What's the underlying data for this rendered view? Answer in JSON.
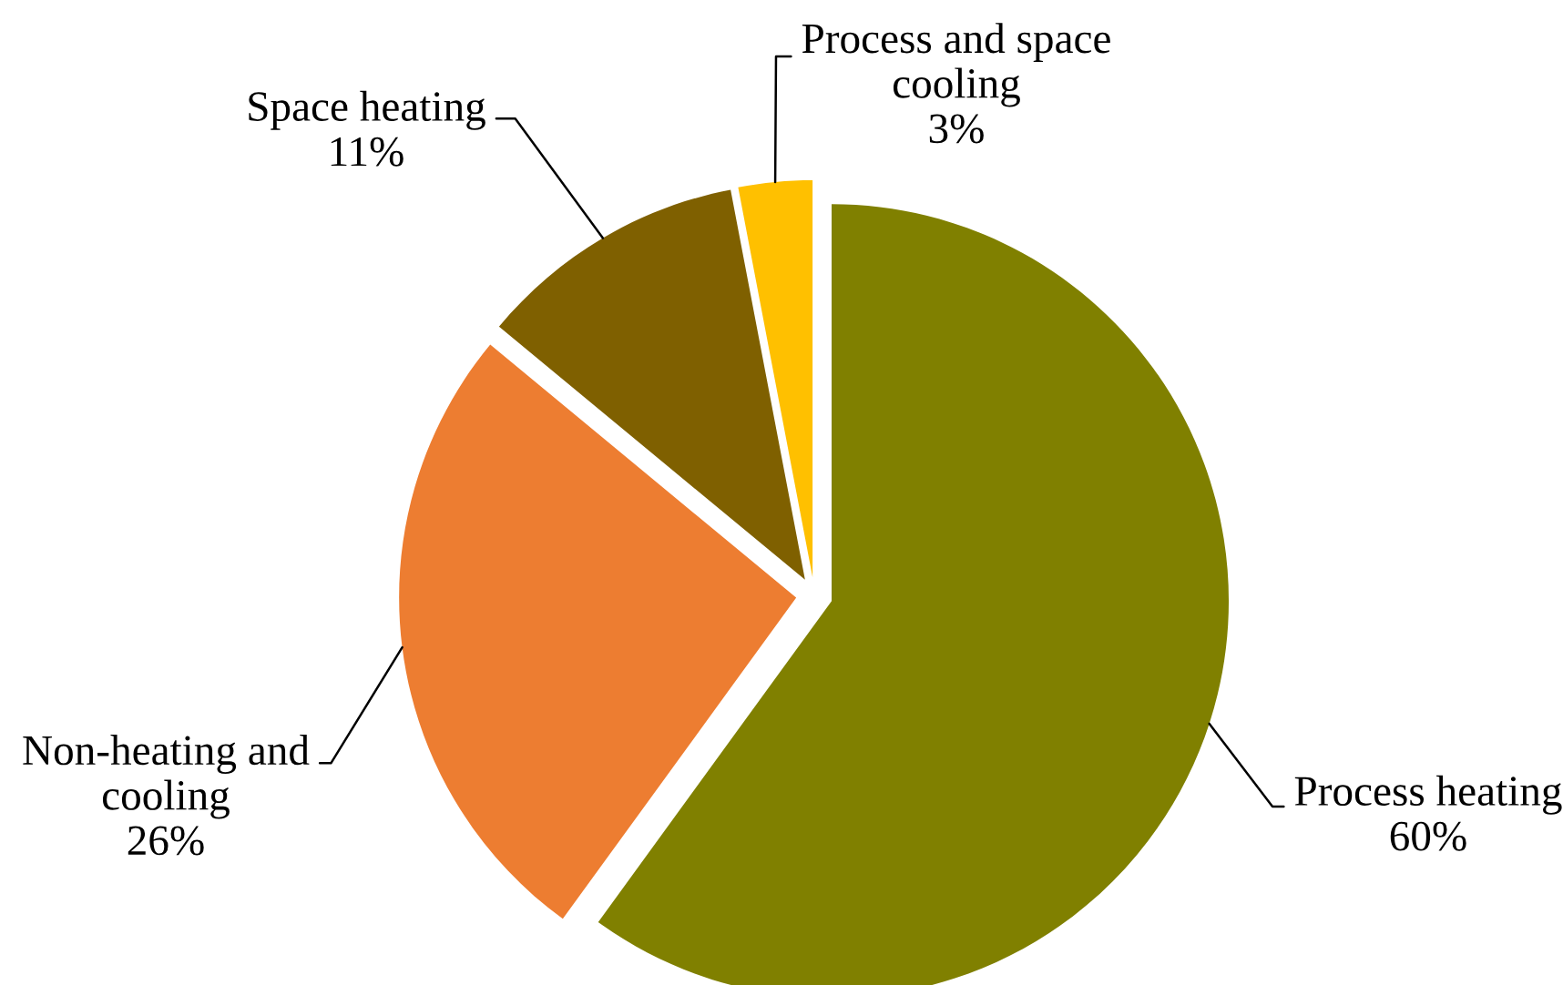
{
  "chart_data": {
    "type": "pie",
    "categories": [
      "Process heating",
      "Non-heating and\ncooling",
      "Space heating",
      "Process and space\ncooling"
    ],
    "values": [
      60,
      26,
      11,
      3
    ],
    "colors": [
      "#808000",
      "#ed7d31",
      "#7f6000",
      "#ffc000"
    ],
    "value_labels": [
      "60%",
      "26%",
      "11%",
      "3%"
    ]
  }
}
